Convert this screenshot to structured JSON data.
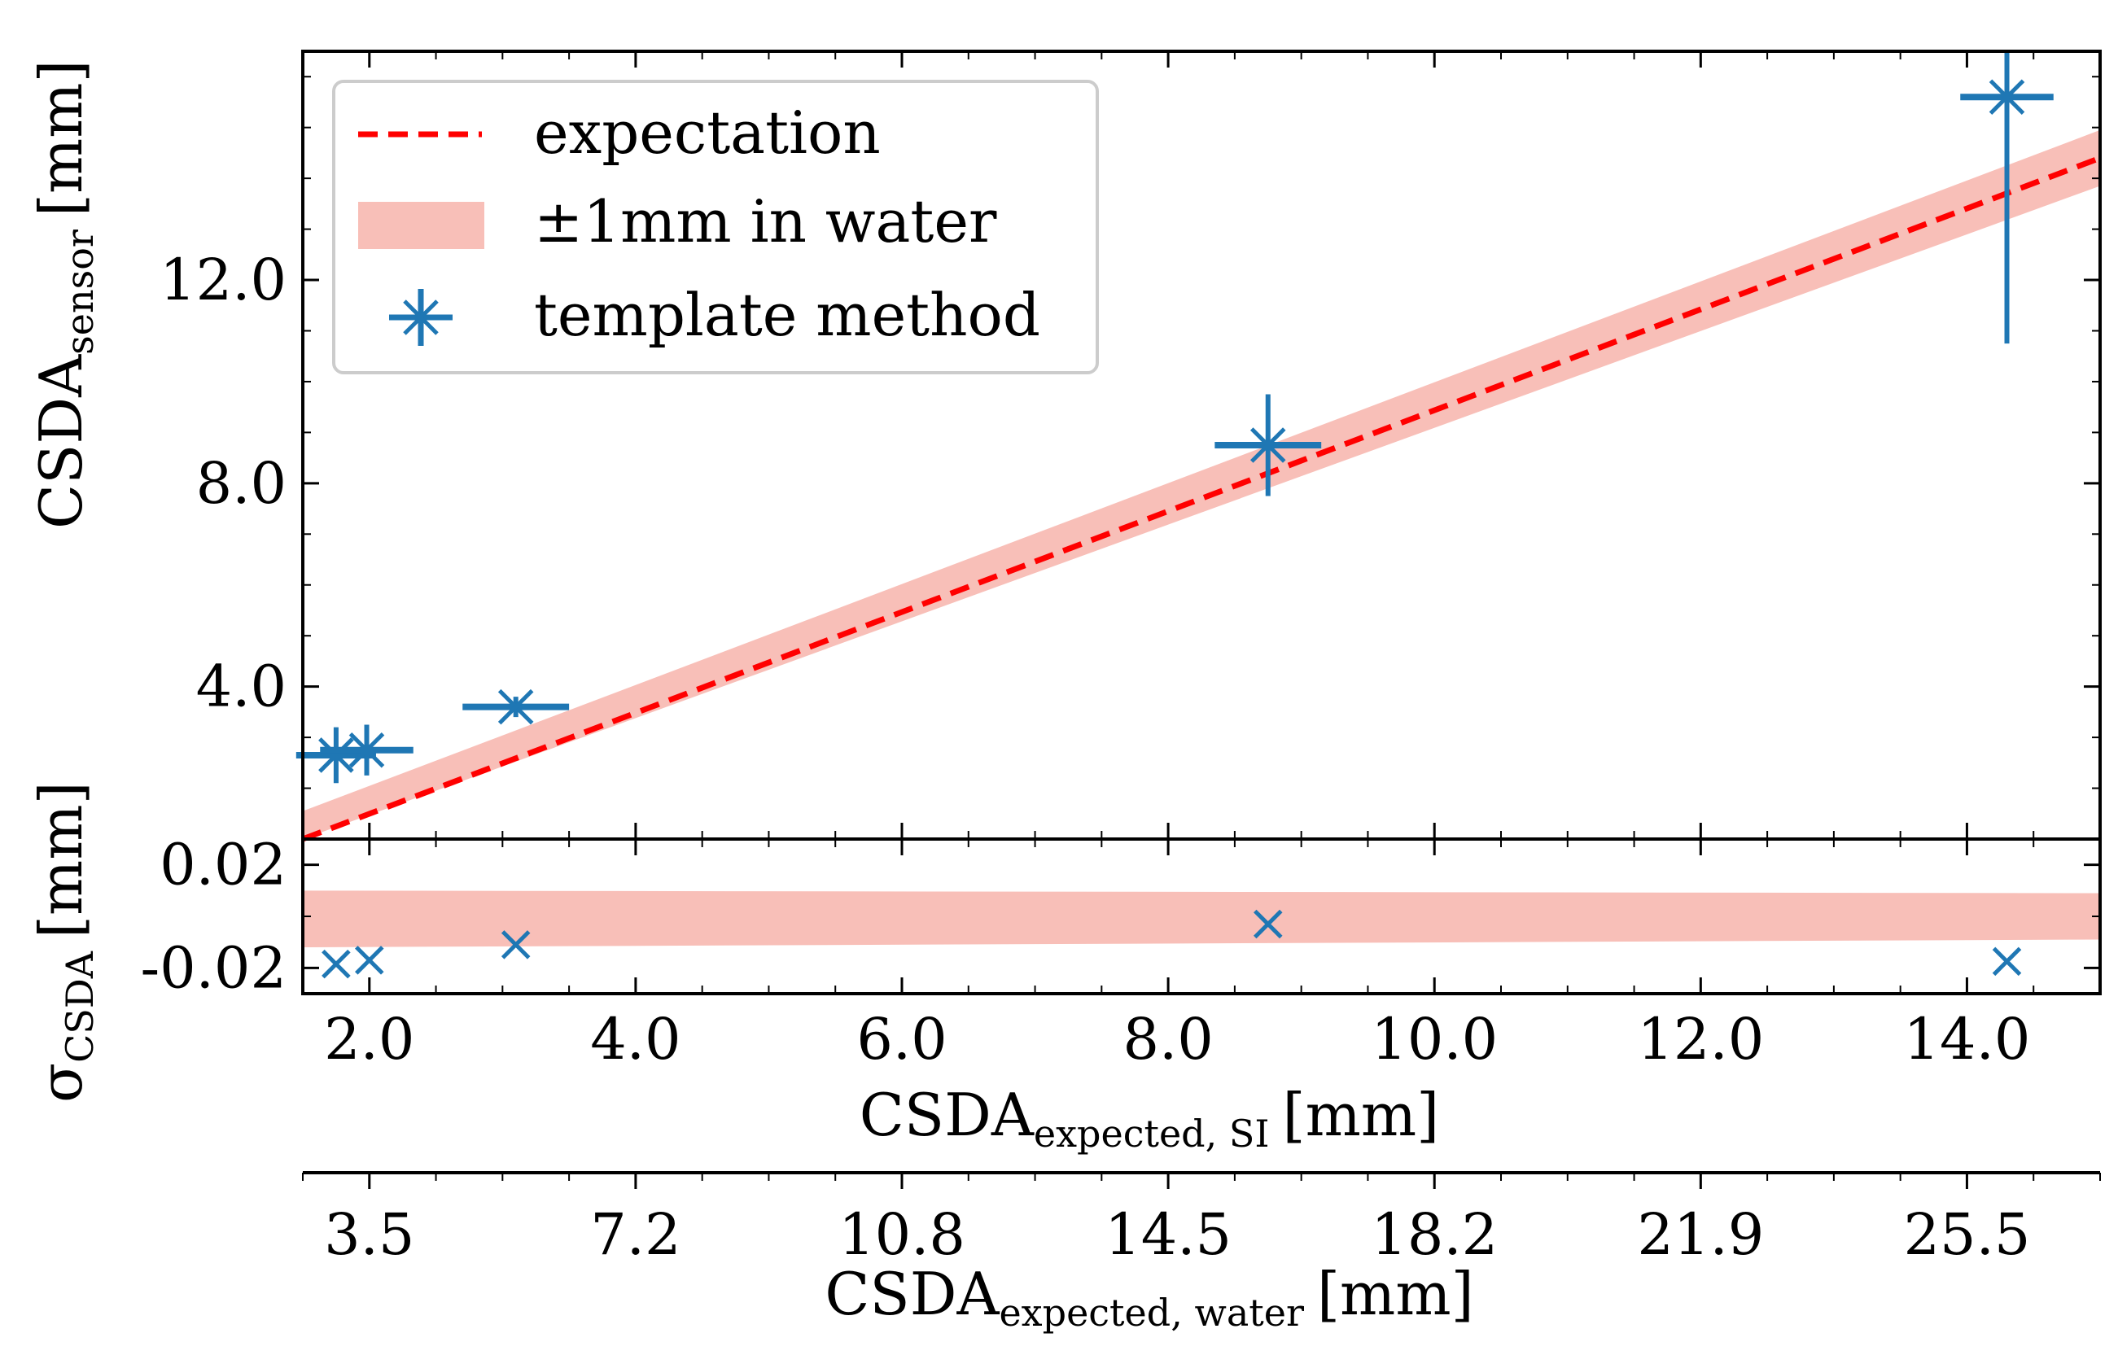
{
  "chart_data": [
    {
      "id": "main",
      "type": "scatter",
      "ylabel": {
        "main": "CSDA",
        "sub": "sensor",
        "unit": "[mm]"
      },
      "xlim": [
        1.5,
        15.0
      ],
      "ylim": [
        1.0,
        16.5
      ],
      "yticks": [
        4.0,
        8.0,
        12.0
      ],
      "ytick_labels": [
        "4.0",
        "8.0",
        "12.0"
      ],
      "grid": false,
      "legend": {
        "placement": "top-left",
        "entries": [
          {
            "label": "expectation",
            "kind": "dashed-line",
            "color": "#ff0000"
          },
          {
            "label": "±1mm in water",
            "kind": "band",
            "color": "#f8bfb8"
          },
          {
            "label": "template method",
            "kind": "errorbar-marker",
            "color": "#1f77b4"
          }
        ]
      },
      "series": [
        {
          "name": "expectation",
          "kind": "line",
          "x": [
            1.5,
            15.0
          ],
          "y": [
            1.0,
            14.4
          ]
        },
        {
          "name": "±1mm in water",
          "kind": "band",
          "x": [
            1.5,
            15.0
          ],
          "y_low": [
            0.45,
            13.85
          ],
          "y_high": [
            1.55,
            14.95
          ]
        },
        {
          "name": "template method",
          "kind": "errorbar",
          "points": [
            {
              "x": 1.75,
              "y": 2.65,
              "xerr": 0.3,
              "yerr": 0.55
            },
            {
              "x": 1.98,
              "y": 2.75,
              "xerr": 0.35,
              "yerr": 0.5
            },
            {
              "x": 3.1,
              "y": 3.6,
              "xerr": 0.4,
              "yerr": 0.2
            },
            {
              "x": 8.75,
              "y": 8.75,
              "xerr": 0.4,
              "yerr": 1.0
            },
            {
              "x": 14.3,
              "y": 15.6,
              "xerr": 0.35,
              "yerr": 4.85
            }
          ]
        }
      ]
    },
    {
      "id": "residual",
      "type": "scatter",
      "ylabel": {
        "main": "σ",
        "sub": "CSDA",
        "unit": "[mm]"
      },
      "xlabel": {
        "main": "CSDA",
        "sub": "expected, SI",
        "unit": "[mm]"
      },
      "xlim": [
        1.5,
        15.0
      ],
      "ylim": [
        -0.03,
        0.03
      ],
      "yticks": [
        -0.02,
        0.02
      ],
      "ytick_labels": [
        "-0.02",
        "0.02"
      ],
      "xticks": [
        2.0,
        4.0,
        6.0,
        8.0,
        10.0,
        12.0,
        14.0
      ],
      "xtick_labels": [
        "2.0",
        "4.0",
        "6.0",
        "8.0",
        "10.0",
        "12.0",
        "14.0"
      ],
      "series": [
        {
          "name": "±1mm in water",
          "kind": "band",
          "x": [
            1.5,
            15.0
          ],
          "y_low": [
            -0.012,
            -0.009
          ],
          "y_high": [
            0.01,
            0.009
          ]
        },
        {
          "name": "template method",
          "kind": "marker",
          "points": [
            {
              "x": 1.75,
              "y": -0.0185
            },
            {
              "x": 2.0,
              "y": -0.017
            },
            {
              "x": 3.1,
              "y": -0.011
            },
            {
              "x": 8.75,
              "y": -0.003
            },
            {
              "x": 14.3,
              "y": -0.0175
            }
          ]
        }
      ]
    },
    {
      "id": "secondary-x-axis",
      "type": "axis",
      "xlabel": {
        "main": "CSDA",
        "sub": "expected, water",
        "unit": "[mm]"
      },
      "tick_positions_si": [
        2.0,
        4.0,
        6.0,
        8.0,
        10.0,
        12.0,
        14.0
      ],
      "xtick_labels": [
        "3.5",
        "7.2",
        "10.8",
        "14.5",
        "18.2",
        "21.9",
        "25.5"
      ]
    }
  ]
}
